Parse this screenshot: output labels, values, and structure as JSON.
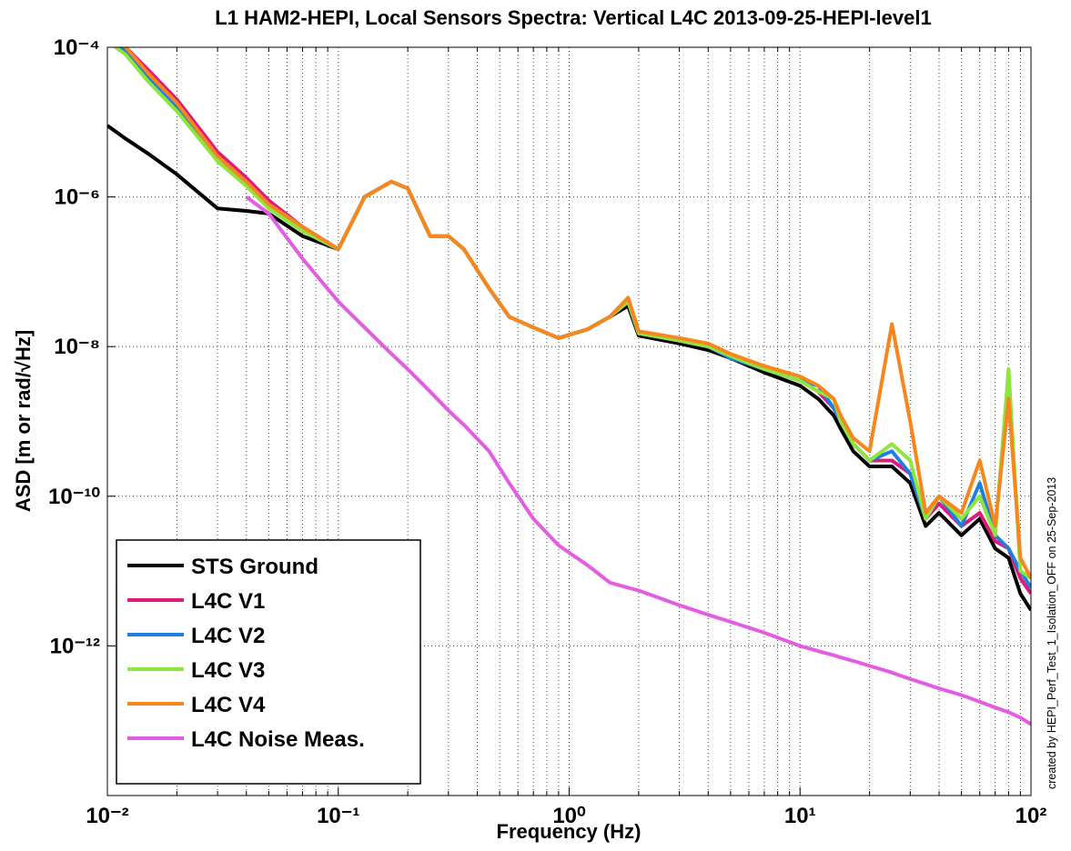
{
  "chart_data": {
    "type": "line",
    "title": "L1 HAM2-HEPI, Local Sensors Spectra:  Vertical L4C 2013-09-25-HEPI-level1",
    "xlabel": "Frequency (Hz)",
    "ylabel": "ASD [m or rad/√Hz]",
    "annotation": "created by HEPI_Perf_Test_1_Isolation_OFF on 25-Sep-2013",
    "xscale": "log",
    "yscale": "log",
    "grid": true,
    "legend": "lower left",
    "xlim": [
      0.01,
      100
    ],
    "ylim": [
      1e-14,
      0.0001
    ],
    "xticks": [
      {
        "value": 0.01,
        "label": "10⁻²"
      },
      {
        "value": 0.1,
        "label": "10⁻¹"
      },
      {
        "value": 1,
        "label": "10⁰"
      },
      {
        "value": 10,
        "label": "10¹"
      },
      {
        "value": 100,
        "label": "10²"
      }
    ],
    "yticks": [
      {
        "value": 1e-12,
        "label": "10⁻¹²"
      },
      {
        "value": 1e-10,
        "label": "10⁻¹⁰"
      },
      {
        "value": 1e-08,
        "label": "10⁻⁸"
      },
      {
        "value": 1e-06,
        "label": "10⁻⁶"
      },
      {
        "value": 0.0001,
        "label": "10⁻⁴"
      }
    ],
    "x": [
      0.01,
      0.012,
      0.015,
      0.02,
      0.03,
      0.04,
      0.05,
      0.07,
      0.1,
      0.13,
      0.17,
      0.2,
      0.25,
      0.3,
      0.35,
      0.45,
      0.55,
      0.7,
      0.9,
      1.2,
      1.5,
      1.8,
      2,
      3,
      4,
      5,
      7,
      10,
      12,
      14,
      15,
      17,
      20,
      25,
      30,
      35,
      40,
      50,
      60,
      70,
      80,
      90,
      100
    ],
    "series": [
      {
        "name": "STS Ground",
        "color": "#000000",
        "values": [
          9e-06,
          6e-06,
          3.8e-06,
          2e-06,
          7e-07,
          6.5e-07,
          6e-07,
          3e-07,
          2e-07,
          1e-06,
          1.6e-06,
          1.3e-06,
          3e-07,
          3e-07,
          2e-07,
          6e-08,
          2.5e-08,
          1.8e-08,
          1.3e-08,
          1.7e-08,
          2.5e-08,
          3.5e-08,
          1.4e-08,
          1.1e-08,
          9e-09,
          7e-09,
          4.5e-09,
          3e-09,
          2e-09,
          1.2e-09,
          8e-10,
          4e-10,
          2.5e-10,
          2.5e-10,
          1.5e-10,
          4e-11,
          6e-11,
          3e-11,
          5e-11,
          2e-11,
          1.5e-11,
          5e-12,
          3e-12
        ]
      },
      {
        "name": "L4C V1",
        "color": "#e0197d",
        "values": [
          0.00015,
          0.0001,
          5e-05,
          2e-05,
          4e-06,
          1.8e-06,
          9e-07,
          4e-07,
          2e-07,
          1e-06,
          1.6e-06,
          1.3e-06,
          3e-07,
          3e-07,
          2e-07,
          6e-08,
          2.5e-08,
          1.8e-08,
          1.3e-08,
          1.7e-08,
          2.5e-08,
          4e-08,
          1.5e-08,
          1.2e-08,
          1e-08,
          7.5e-09,
          5e-09,
          3.5e-09,
          2.5e-09,
          1.5e-09,
          1e-09,
          5e-10,
          3e-10,
          3e-10,
          2e-10,
          5e-11,
          8e-11,
          4e-11,
          6e-11,
          2.5e-11,
          2e-11,
          8e-12,
          5e-12
        ]
      },
      {
        "name": "L4C V2",
        "color": "#1f7fdf",
        "values": [
          0.00013,
          9e-05,
          4e-05,
          1.6e-05,
          3e-06,
          1.5e-06,
          8e-07,
          4e-07,
          2e-07,
          1e-06,
          1.6e-06,
          1.3e-06,
          3e-07,
          3e-07,
          2e-07,
          6e-08,
          2.5e-08,
          1.8e-08,
          1.3e-08,
          1.7e-08,
          2.5e-08,
          4e-08,
          1.5e-08,
          1.2e-08,
          1e-08,
          7e-09,
          5e-09,
          3.5e-09,
          3e-09,
          1.5e-09,
          1e-09,
          5e-10,
          3e-10,
          4e-10,
          2e-10,
          5e-11,
          1e-10,
          4e-11,
          1.5e-10,
          3e-11,
          2e-11,
          1e-11,
          6e-12
        ]
      },
      {
        "name": "L4C V3",
        "color": "#8ee53f",
        "values": [
          0.00012,
          8e-05,
          3.5e-05,
          1.4e-05,
          3e-06,
          1.4e-06,
          7e-07,
          3.5e-07,
          2e-07,
          1e-06,
          1.6e-06,
          1.3e-06,
          3e-07,
          3e-07,
          2e-07,
          6e-08,
          2.5e-08,
          1.8e-08,
          1.3e-08,
          1.7e-08,
          2.5e-08,
          4e-08,
          1.5e-08,
          1.2e-08,
          1e-08,
          7.5e-09,
          5e-09,
          3.5e-09,
          2.5e-09,
          2e-09,
          1e-09,
          5e-10,
          3e-10,
          5e-10,
          3e-10,
          5e-11,
          1e-10,
          5e-11,
          1e-10,
          3e-11,
          5e-09,
          1e-11,
          8e-12
        ]
      },
      {
        "name": "L4C V4",
        "color": "#f7861c",
        "values": [
          0.00014,
          0.0001,
          4.5e-05,
          1.8e-05,
          3.5e-06,
          1.6e-06,
          8e-07,
          4e-07,
          2e-07,
          1e-06,
          1.6e-06,
          1.3e-06,
          3e-07,
          3e-07,
          2e-07,
          6e-08,
          2.5e-08,
          1.8e-08,
          1.3e-08,
          1.7e-08,
          2.5e-08,
          4.5e-08,
          1.6e-08,
          1.3e-08,
          1.1e-08,
          8e-09,
          5.5e-09,
          4e-09,
          3e-09,
          2e-09,
          1.2e-09,
          6e-10,
          4e-10,
          2e-08,
          1e-09,
          6e-11,
          1e-10,
          6e-11,
          3e-10,
          4e-11,
          2e-09,
          1.5e-11,
          8e-12
        ]
      },
      {
        "name": "L4C Noise Meas.",
        "color": "#e35de3",
        "values": [
          null,
          null,
          null,
          null,
          null,
          1e-06,
          6e-07,
          1.5e-07,
          4e-08,
          1.8e-08,
          8e-09,
          5e-09,
          2.5e-09,
          1.4e-09,
          9e-10,
          4e-10,
          1.5e-10,
          5e-11,
          2.2e-11,
          1.2e-11,
          7e-12,
          6e-12,
          5.5e-12,
          3.5e-12,
          2.6e-12,
          2.1e-12,
          1.5e-12,
          1e-12,
          8.5e-13,
          7.5e-13,
          7e-13,
          6.3e-13,
          5.4e-13,
          4.4e-13,
          3.6e-13,
          3.1e-13,
          2.7e-13,
          2.2e-13,
          1.8e-13,
          1.5e-13,
          1.3e-13,
          1.1e-13,
          9e-14
        ]
      }
    ]
  }
}
